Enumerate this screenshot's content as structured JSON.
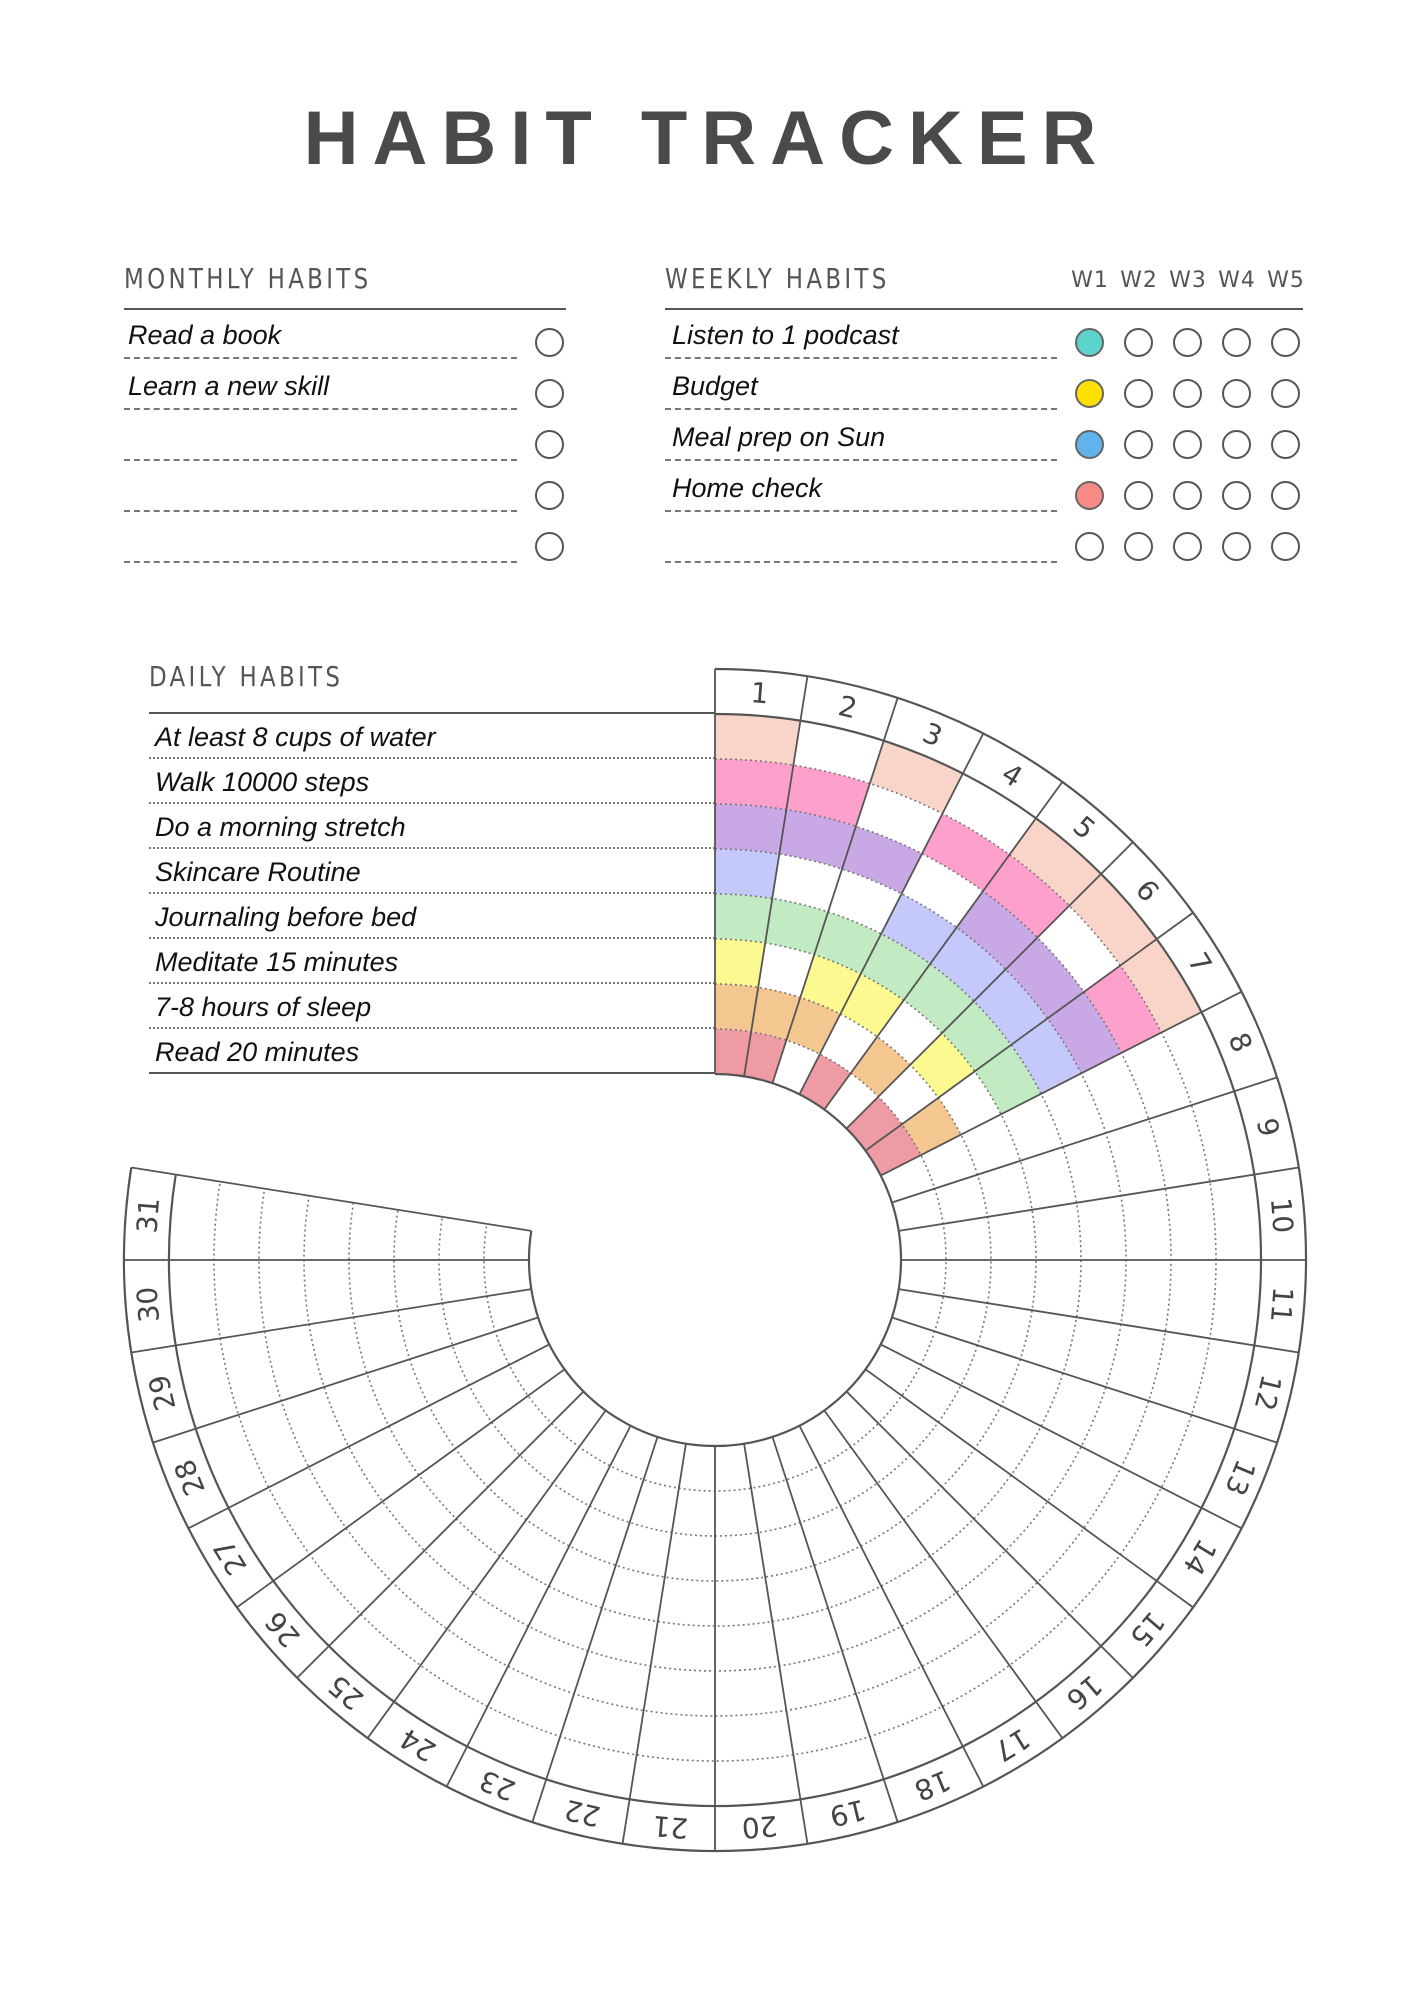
{
  "title": "HABIT TRACKER",
  "monthly": {
    "heading": "MONTHLY HABITS",
    "items": [
      {
        "label": "Read a book",
        "done": false
      },
      {
        "label": "Learn a new skill",
        "done": false
      },
      {
        "label": "",
        "done": false
      },
      {
        "label": "",
        "done": false
      },
      {
        "label": "",
        "done": false
      }
    ]
  },
  "weekly": {
    "heading": "WEEKLY HABITS",
    "weeks": [
      "W1",
      "W2",
      "W3",
      "W4",
      "W5"
    ],
    "items": [
      {
        "label": "Listen to 1 podcast",
        "color": "#5cd4cc",
        "completed_weeks": [
          1
        ]
      },
      {
        "label": "Budget",
        "color": "#fde000",
        "completed_weeks": [
          1
        ]
      },
      {
        "label": "Meal prep on Sun",
        "color": "#61b3ec",
        "completed_weeks": [
          1
        ]
      },
      {
        "label": "Home check",
        "color": "#f88a86",
        "completed_weeks": [
          1
        ]
      },
      {
        "label": "",
        "color": "#ffffff",
        "completed_weeks": []
      }
    ]
  },
  "daily": {
    "heading": "DAILY HABITS",
    "days": [
      "1",
      "2",
      "3",
      "4",
      "5",
      "6",
      "7",
      "8",
      "9",
      "10",
      "11",
      "12",
      "13",
      "14",
      "15",
      "16",
      "17",
      "18",
      "19",
      "20",
      "21",
      "22",
      "23",
      "24",
      "25",
      "26",
      "27",
      "28",
      "29",
      "30",
      "31"
    ],
    "habits": [
      {
        "label": "At least 8 cups of water",
        "color": "#f8d5c8",
        "completed_days": [
          1,
          3,
          5,
          6,
          7
        ]
      },
      {
        "label": "Walk 10000 steps",
        "color": "#fda0cb",
        "completed_days": [
          1,
          2,
          4,
          5,
          7
        ]
      },
      {
        "label": "Do a morning stretch",
        "color": "#c9a8e6",
        "completed_days": [
          1,
          2,
          3,
          5,
          6,
          7
        ]
      },
      {
        "label": "Skincare Routine",
        "color": "#c4c8fb",
        "completed_days": [
          1,
          4,
          5,
          6,
          7
        ]
      },
      {
        "label": "Journaling before bed",
        "color": "#c2eac3",
        "completed_days": [
          1,
          2,
          3,
          4,
          5,
          6,
          7
        ]
      },
      {
        "label": "Meditate 15 minutes",
        "color": "#fbf98f",
        "completed_days": [
          1,
          3,
          4,
          6
        ]
      },
      {
        "label": "7-8 hours of sleep",
        "color": "#f4c690",
        "completed_days": [
          1,
          2,
          3,
          5,
          7
        ]
      },
      {
        "label": "Read 20 minutes",
        "color": "#ee9ba3",
        "completed_days": [
          1,
          2,
          4,
          6,
          7
        ]
      }
    ]
  }
}
